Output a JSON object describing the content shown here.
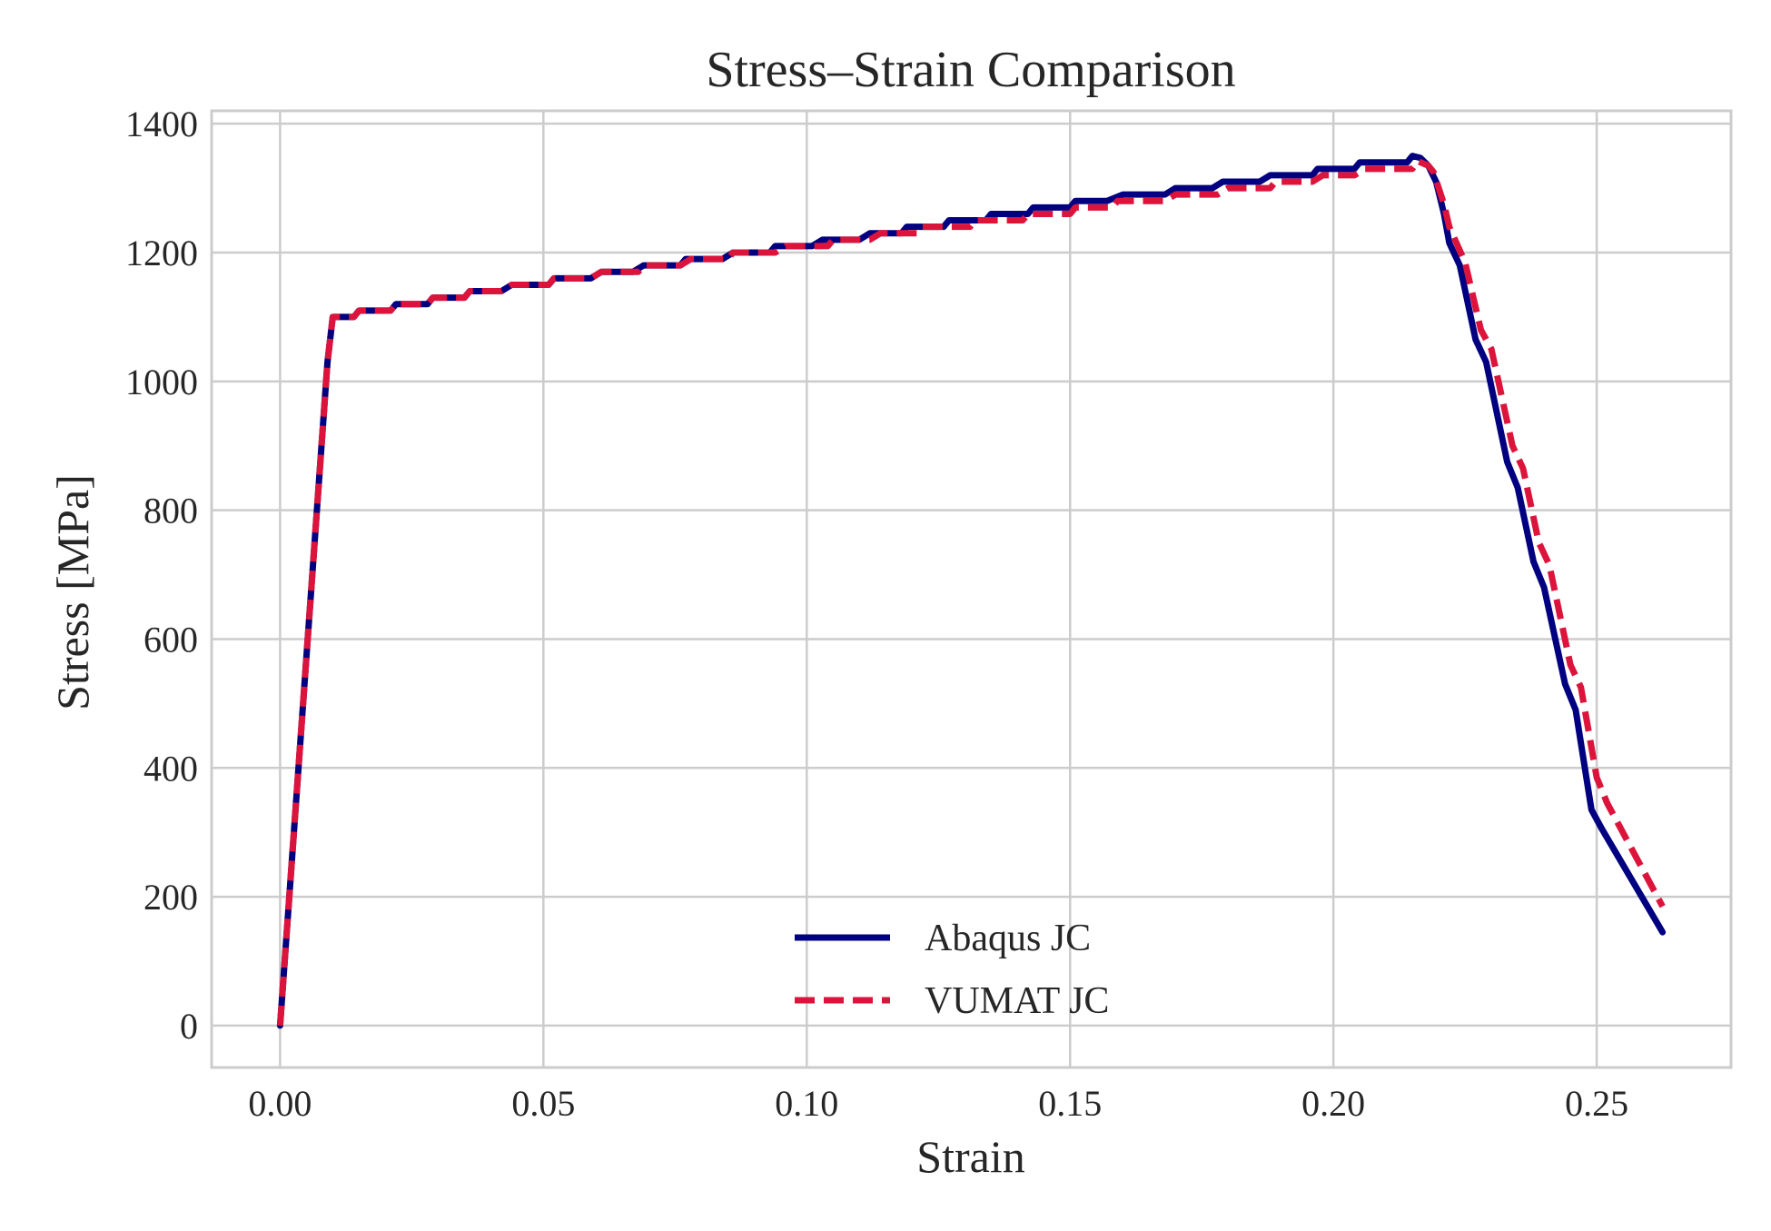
{
  "chart_data": {
    "type": "line",
    "title": "Stress–Strain Comparison",
    "xlabel": "Strain",
    "ylabel": "Stress [MPa]",
    "xlim": [
      -0.013,
      0.2755
    ],
    "ylim": [
      -65,
      1420
    ],
    "xticks": [
      0.0,
      0.05,
      0.1,
      0.15,
      0.2,
      0.25
    ],
    "xtick_labels": [
      "0.00",
      "0.05",
      "0.10",
      "0.15",
      "0.20",
      "0.25"
    ],
    "yticks": [
      0,
      200,
      400,
      600,
      800,
      1000,
      1200,
      1400
    ],
    "ytick_labels": [
      "0",
      "200",
      "400",
      "600",
      "800",
      "1000",
      "1200",
      "1400"
    ],
    "grid": true,
    "legend_position": "bottom-center",
    "series": [
      {
        "name": "Abaqus JC",
        "color": "#000080",
        "style": "solid",
        "points": [
          [
            0.0,
            0
          ],
          [
            0.009,
            1030
          ],
          [
            0.01,
            1100
          ],
          [
            0.014,
            1100
          ],
          [
            0.015,
            1110
          ],
          [
            0.021,
            1110
          ],
          [
            0.022,
            1120
          ],
          [
            0.028,
            1120
          ],
          [
            0.029,
            1130
          ],
          [
            0.035,
            1130
          ],
          [
            0.036,
            1140
          ],
          [
            0.042,
            1140
          ],
          [
            0.044,
            1150
          ],
          [
            0.051,
            1150
          ],
          [
            0.052,
            1160
          ],
          [
            0.059,
            1160
          ],
          [
            0.061,
            1170
          ],
          [
            0.067,
            1170
          ],
          [
            0.069,
            1180
          ],
          [
            0.076,
            1180
          ],
          [
            0.077,
            1190
          ],
          [
            0.084,
            1190
          ],
          [
            0.086,
            1200
          ],
          [
            0.093,
            1200
          ],
          [
            0.094,
            1210
          ],
          [
            0.101,
            1210
          ],
          [
            0.103,
            1220
          ],
          [
            0.11,
            1220
          ],
          [
            0.112,
            1230
          ],
          [
            0.118,
            1230
          ],
          [
            0.119,
            1240
          ],
          [
            0.126,
            1240
          ],
          [
            0.127,
            1250
          ],
          [
            0.134,
            1250
          ],
          [
            0.135,
            1260
          ],
          [
            0.142,
            1260
          ],
          [
            0.143,
            1270
          ],
          [
            0.15,
            1270
          ],
          [
            0.151,
            1280
          ],
          [
            0.157,
            1280
          ],
          [
            0.16,
            1290
          ],
          [
            0.168,
            1290
          ],
          [
            0.17,
            1300
          ],
          [
            0.177,
            1300
          ],
          [
            0.179,
            1310
          ],
          [
            0.186,
            1310
          ],
          [
            0.188,
            1320
          ],
          [
            0.196,
            1320
          ],
          [
            0.197,
            1330
          ],
          [
            0.204,
            1330
          ],
          [
            0.205,
            1340
          ],
          [
            0.214,
            1340
          ],
          [
            0.215,
            1350
          ],
          [
            0.2165,
            1347
          ],
          [
            0.218,
            1335
          ],
          [
            0.2195,
            1310
          ],
          [
            0.221,
            1260
          ],
          [
            0.222,
            1215
          ],
          [
            0.224,
            1180
          ],
          [
            0.227,
            1065
          ],
          [
            0.229,
            1030
          ],
          [
            0.233,
            875
          ],
          [
            0.235,
            835
          ],
          [
            0.238,
            720
          ],
          [
            0.24,
            680
          ],
          [
            0.244,
            530
          ],
          [
            0.246,
            490
          ],
          [
            0.249,
            335
          ],
          [
            0.251,
            305
          ],
          [
            0.2625,
            145
          ]
        ]
      },
      {
        "name": "VUMAT JC",
        "color": "#dc143c",
        "style": "dashed",
        "points": [
          [
            0.0,
            0
          ],
          [
            0.009,
            1030
          ],
          [
            0.01,
            1100
          ],
          [
            0.014,
            1100
          ],
          [
            0.015,
            1110
          ],
          [
            0.021,
            1110
          ],
          [
            0.022,
            1120
          ],
          [
            0.028,
            1120
          ],
          [
            0.029,
            1130
          ],
          [
            0.035,
            1130
          ],
          [
            0.036,
            1140
          ],
          [
            0.042,
            1140
          ],
          [
            0.044,
            1150
          ],
          [
            0.051,
            1150
          ],
          [
            0.052,
            1160
          ],
          [
            0.059,
            1160
          ],
          [
            0.061,
            1170
          ],
          [
            0.068,
            1170
          ],
          [
            0.069,
            1180
          ],
          [
            0.076,
            1180
          ],
          [
            0.078,
            1190
          ],
          [
            0.085,
            1190
          ],
          [
            0.086,
            1200
          ],
          [
            0.094,
            1200
          ],
          [
            0.096,
            1210
          ],
          [
            0.104,
            1210
          ],
          [
            0.105,
            1220
          ],
          [
            0.112,
            1220
          ],
          [
            0.114,
            1230
          ],
          [
            0.121,
            1230
          ],
          [
            0.122,
            1240
          ],
          [
            0.131,
            1240
          ],
          [
            0.132,
            1250
          ],
          [
            0.141,
            1250
          ],
          [
            0.142,
            1260
          ],
          [
            0.15,
            1260
          ],
          [
            0.151,
            1270
          ],
          [
            0.158,
            1270
          ],
          [
            0.159,
            1280
          ],
          [
            0.168,
            1280
          ],
          [
            0.17,
            1290
          ],
          [
            0.178,
            1290
          ],
          [
            0.18,
            1300
          ],
          [
            0.188,
            1300
          ],
          [
            0.189,
            1310
          ],
          [
            0.196,
            1310
          ],
          [
            0.198,
            1320
          ],
          [
            0.204,
            1320
          ],
          [
            0.206,
            1330
          ],
          [
            0.215,
            1330
          ],
          [
            0.216,
            1342
          ],
          [
            0.218,
            1335
          ],
          [
            0.219,
            1325
          ],
          [
            0.221,
            1275
          ],
          [
            0.222,
            1240
          ],
          [
            0.225,
            1185
          ],
          [
            0.228,
            1080
          ],
          [
            0.23,
            1050
          ],
          [
            0.234,
            900
          ],
          [
            0.236,
            865
          ],
          [
            0.239,
            750
          ],
          [
            0.241,
            715
          ],
          [
            0.245,
            560
          ],
          [
            0.247,
            525
          ],
          [
            0.25,
            385
          ],
          [
            0.252,
            345
          ],
          [
            0.2625,
            185
          ]
        ]
      }
    ]
  }
}
